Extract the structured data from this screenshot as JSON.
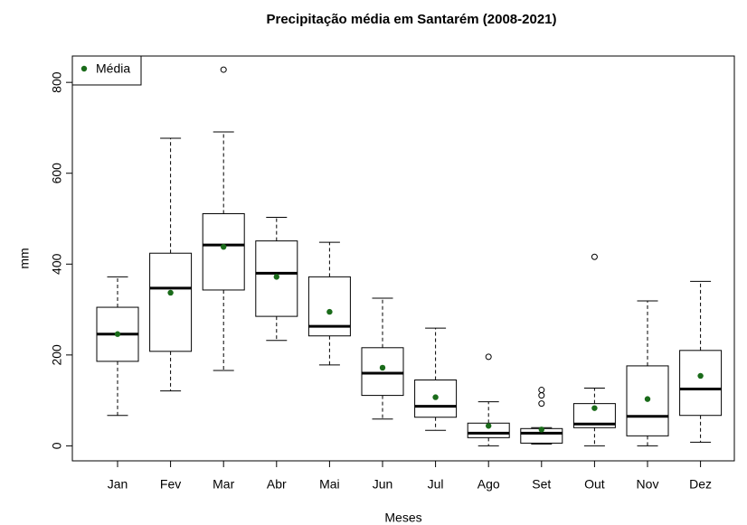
{
  "chart_data": {
    "type": "boxplot",
    "title": "Precipitação média em Santarém (2008-2021)",
    "x_label": "Meses",
    "y_label": "mm",
    "categories": [
      "Jan",
      "Fev",
      "Mar",
      "Abr",
      "Mai",
      "Jun",
      "Jul",
      "Ago",
      "Set",
      "Out",
      "Nov",
      "Dez"
    ],
    "min": [
      67,
      121,
      166,
      232,
      178,
      59,
      34,
      0,
      4,
      0,
      0,
      8
    ],
    "q1": [
      186,
      208,
      343,
      285,
      242,
      111,
      63,
      18,
      6,
      40,
      22,
      67
    ],
    "median": [
      246,
      347,
      442,
      380,
      263,
      160,
      87,
      28,
      28,
      48,
      65,
      125
    ],
    "q3": [
      305,
      424,
      511,
      451,
      372,
      216,
      145,
      50,
      38,
      93,
      176,
      210
    ],
    "max": [
      372,
      677,
      691,
      503,
      448,
      325,
      259,
      97,
      40,
      127,
      319,
      362
    ],
    "mean": [
      246,
      337,
      438,
      372,
      295,
      172,
      107,
      44,
      36,
      83,
      103,
      154
    ],
    "outliers": [
      [],
      [],
      [
        828
      ],
      [],
      [],
      [],
      [],
      [
        196
      ],
      [
        123,
        111,
        93
      ],
      [
        416
      ],
      [],
      []
    ],
    "mean_color": "#1a6b1a",
    "legend": {
      "label": "Média",
      "position": "top-left"
    },
    "ylim": [
      -33,
      858
    ],
    "yticks": [
      0,
      200,
      400,
      600,
      800
    ]
  }
}
